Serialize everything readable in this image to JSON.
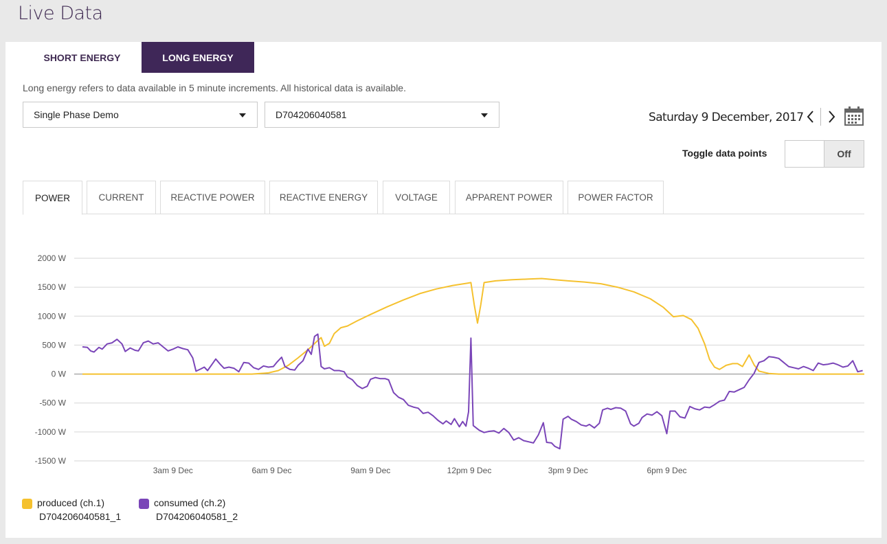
{
  "page": {
    "title": "Live Data"
  },
  "energy_tabs": [
    {
      "label": "SHORT ENERGY",
      "active": false
    },
    {
      "label": "LONG ENERGY",
      "active": true
    }
  ],
  "description": "Long energy refers to data available in 5 minute increments. All historical data is available.",
  "selects": {
    "site": {
      "value": "Single Phase Demo"
    },
    "device": {
      "value": "D704206040581"
    }
  },
  "date": {
    "label": "Saturday 9 December, 2017"
  },
  "toggle": {
    "label": "Toggle data points",
    "state": "Off"
  },
  "metric_tabs": [
    {
      "label": "POWER",
      "active": true
    },
    {
      "label": "CURRENT",
      "active": false
    },
    {
      "label": "REACTIVE POWER",
      "active": false
    },
    {
      "label": "REACTIVE ENERGY",
      "active": false
    },
    {
      "label": "VOLTAGE",
      "active": false
    },
    {
      "label": "APPARENT POWER",
      "active": false
    },
    {
      "label": "POWER FACTOR",
      "active": false
    }
  ],
  "icons": {
    "prev": "chevron-left-icon",
    "next": "chevron-right-icon",
    "calendar": "calendar-icon",
    "dropdown": "caret-down-icon"
  },
  "colors": {
    "accent": "#3f2758",
    "produced": "#f5c12e",
    "consumed": "#7a45b8"
  },
  "chart_data": {
    "type": "line",
    "title": "",
    "xlabel": "",
    "ylabel": "",
    "ylim": [
      -1500,
      2000
    ],
    "yticks": [
      2000,
      1500,
      1000,
      500,
      0,
      -500,
      -1000,
      -1500
    ],
    "ytick_labels": [
      "2000 W",
      "1500 W",
      "1000 W",
      "500 W",
      "0 W",
      "-500 W",
      "-1000 W",
      "-1500 W"
    ],
    "x_unit": "hours since 00:00 9 Dec",
    "xlim": [
      0,
      24
    ],
    "xticks": [
      3,
      6,
      9,
      12,
      15,
      18
    ],
    "xtick_labels": [
      "3am 9 Dec",
      "6am 9 Dec",
      "9am 9 Dec",
      "12pm 9 Dec",
      "3pm 9 Dec",
      "6pm 9 Dec"
    ],
    "grid": true,
    "legend_position": "bottom-left",
    "series": [
      {
        "name": "produced (ch.1)",
        "id": "D704206040581_1",
        "color": "#f5c12e",
        "points": [
          [
            0.25,
            0
          ],
          [
            5.4,
            0
          ],
          [
            5.9,
            20
          ],
          [
            6.2,
            60
          ],
          [
            6.5,
            150
          ],
          [
            6.8,
            280
          ],
          [
            7.1,
            420
          ],
          [
            7.4,
            580
          ],
          [
            7.5,
            630
          ],
          [
            7.6,
            480
          ],
          [
            7.75,
            530
          ],
          [
            7.9,
            700
          ],
          [
            8.1,
            800
          ],
          [
            8.3,
            830
          ],
          [
            8.6,
            920
          ],
          [
            9.0,
            1030
          ],
          [
            9.5,
            1160
          ],
          [
            10.0,
            1280
          ],
          [
            10.5,
            1390
          ],
          [
            11.0,
            1470
          ],
          [
            11.5,
            1530
          ],
          [
            11.95,
            1570
          ],
          [
            12.05,
            1580
          ],
          [
            12.15,
            1200
          ],
          [
            12.25,
            880
          ],
          [
            12.35,
            1200
          ],
          [
            12.45,
            1580
          ],
          [
            12.8,
            1610
          ],
          [
            13.3,
            1630
          ],
          [
            13.8,
            1640
          ],
          [
            14.2,
            1650
          ],
          [
            14.6,
            1630
          ],
          [
            15.0,
            1610
          ],
          [
            15.5,
            1590
          ],
          [
            16.0,
            1560
          ],
          [
            16.5,
            1500
          ],
          [
            17.0,
            1420
          ],
          [
            17.5,
            1300
          ],
          [
            17.9,
            1150
          ],
          [
            18.2,
            990
          ],
          [
            18.5,
            1010
          ],
          [
            18.75,
            940
          ],
          [
            18.95,
            790
          ],
          [
            19.15,
            520
          ],
          [
            19.3,
            250
          ],
          [
            19.45,
            120
          ],
          [
            19.6,
            80
          ],
          [
            19.8,
            150
          ],
          [
            20.0,
            180
          ],
          [
            20.15,
            180
          ],
          [
            20.3,
            130
          ],
          [
            20.5,
            330
          ],
          [
            20.65,
            160
          ],
          [
            20.8,
            50
          ],
          [
            21.1,
            10
          ],
          [
            21.4,
            0
          ],
          [
            24.0,
            0
          ]
        ]
      },
      {
        "name": "consumed (ch.2)",
        "id": "D704206040581_2",
        "color": "#7a45b8",
        "points": [
          [
            0.25,
            470
          ],
          [
            0.4,
            460
          ],
          [
            0.5,
            400
          ],
          [
            0.6,
            380
          ],
          [
            0.75,
            460
          ],
          [
            0.85,
            430
          ],
          [
            1.0,
            520
          ],
          [
            1.15,
            540
          ],
          [
            1.3,
            600
          ],
          [
            1.45,
            520
          ],
          [
            1.55,
            390
          ],
          [
            1.7,
            450
          ],
          [
            1.85,
            410
          ],
          [
            1.95,
            400
          ],
          [
            2.1,
            540
          ],
          [
            2.25,
            570
          ],
          [
            2.4,
            520
          ],
          [
            2.55,
            540
          ],
          [
            2.7,
            470
          ],
          [
            2.85,
            400
          ],
          [
            3.0,
            430
          ],
          [
            3.15,
            470
          ],
          [
            3.3,
            440
          ],
          [
            3.45,
            420
          ],
          [
            3.6,
            280
          ],
          [
            3.7,
            50
          ],
          [
            3.85,
            90
          ],
          [
            3.95,
            120
          ],
          [
            4.05,
            60
          ],
          [
            4.2,
            180
          ],
          [
            4.3,
            260
          ],
          [
            4.45,
            160
          ],
          [
            4.55,
            100
          ],
          [
            4.7,
            120
          ],
          [
            4.85,
            100
          ],
          [
            5.0,
            40
          ],
          [
            5.15,
            200
          ],
          [
            5.3,
            190
          ],
          [
            5.45,
            110
          ],
          [
            5.6,
            80
          ],
          [
            5.75,
            140
          ],
          [
            5.9,
            120
          ],
          [
            6.05,
            130
          ],
          [
            6.15,
            200
          ],
          [
            6.3,
            290
          ],
          [
            6.4,
            130
          ],
          [
            6.55,
            80
          ],
          [
            6.7,
            70
          ],
          [
            6.8,
            150
          ],
          [
            6.95,
            230
          ],
          [
            7.1,
            430
          ],
          [
            7.2,
            340
          ],
          [
            7.3,
            650
          ],
          [
            7.4,
            690
          ],
          [
            7.5,
            130
          ],
          [
            7.6,
            90
          ],
          [
            7.75,
            110
          ],
          [
            7.9,
            60
          ],
          [
            8.05,
            60
          ],
          [
            8.2,
            40
          ],
          [
            8.3,
            -50
          ],
          [
            8.45,
            -100
          ],
          [
            8.6,
            -200
          ],
          [
            8.75,
            -250
          ],
          [
            8.9,
            -210
          ],
          [
            9.0,
            -90
          ],
          [
            9.15,
            -60
          ],
          [
            9.3,
            -80
          ],
          [
            9.45,
            -80
          ],
          [
            9.55,
            -100
          ],
          [
            9.7,
            -320
          ],
          [
            9.85,
            -400
          ],
          [
            10.0,
            -440
          ],
          [
            10.15,
            -540
          ],
          [
            10.3,
            -570
          ],
          [
            10.45,
            -590
          ],
          [
            10.6,
            -680
          ],
          [
            10.75,
            -660
          ],
          [
            10.9,
            -720
          ],
          [
            11.05,
            -800
          ],
          [
            11.2,
            -860
          ],
          [
            11.3,
            -810
          ],
          [
            11.45,
            -870
          ],
          [
            11.55,
            -770
          ],
          [
            11.7,
            -910
          ],
          [
            11.8,
            -820
          ],
          [
            11.9,
            -900
          ],
          [
            11.98,
            -650
          ],
          [
            12.05,
            620
          ],
          [
            12.12,
            -890
          ],
          [
            12.3,
            -970
          ],
          [
            12.45,
            -1010
          ],
          [
            12.6,
            -990
          ],
          [
            12.75,
            -980
          ],
          [
            12.9,
            -1020
          ],
          [
            13.05,
            -940
          ],
          [
            13.2,
            -1010
          ],
          [
            13.35,
            -1140
          ],
          [
            13.5,
            -1100
          ],
          [
            13.65,
            -1150
          ],
          [
            13.8,
            -1170
          ],
          [
            13.95,
            -1190
          ],
          [
            14.1,
            -1050
          ],
          [
            14.25,
            -840
          ],
          [
            14.35,
            -1180
          ],
          [
            14.5,
            -1190
          ],
          [
            14.6,
            -1250
          ],
          [
            14.75,
            -1290
          ],
          [
            14.85,
            -780
          ],
          [
            15.0,
            -730
          ],
          [
            15.1,
            -780
          ],
          [
            15.25,
            -820
          ],
          [
            15.4,
            -880
          ],
          [
            15.55,
            -900
          ],
          [
            15.65,
            -870
          ],
          [
            15.8,
            -930
          ],
          [
            15.95,
            -850
          ],
          [
            16.05,
            -620
          ],
          [
            16.2,
            -590
          ],
          [
            16.3,
            -610
          ],
          [
            16.45,
            -580
          ],
          [
            16.6,
            -590
          ],
          [
            16.75,
            -640
          ],
          [
            16.9,
            -860
          ],
          [
            17.0,
            -900
          ],
          [
            17.15,
            -850
          ],
          [
            17.25,
            -750
          ],
          [
            17.4,
            -690
          ],
          [
            17.55,
            -710
          ],
          [
            17.7,
            -650
          ],
          [
            17.85,
            -720
          ],
          [
            18.0,
            -1030
          ],
          [
            18.1,
            -640
          ],
          [
            18.25,
            -640
          ],
          [
            18.4,
            -740
          ],
          [
            18.55,
            -760
          ],
          [
            18.7,
            -560
          ],
          [
            18.85,
            -600
          ],
          [
            19.0,
            -620
          ],
          [
            19.15,
            -570
          ],
          [
            19.3,
            -580
          ],
          [
            19.45,
            -530
          ],
          [
            19.6,
            -470
          ],
          [
            19.75,
            -450
          ],
          [
            19.9,
            -300
          ],
          [
            20.05,
            -310
          ],
          [
            20.2,
            -270
          ],
          [
            20.35,
            -230
          ],
          [
            20.5,
            -100
          ],
          [
            20.65,
            10
          ],
          [
            20.8,
            200
          ],
          [
            20.95,
            230
          ],
          [
            21.1,
            300
          ],
          [
            21.25,
            290
          ],
          [
            21.4,
            270
          ],
          [
            21.55,
            200
          ],
          [
            21.7,
            130
          ],
          [
            21.85,
            110
          ],
          [
            22.0,
            90
          ],
          [
            22.15,
            130
          ],
          [
            22.3,
            100
          ],
          [
            22.45,
            60
          ],
          [
            22.6,
            190
          ],
          [
            22.75,
            160
          ],
          [
            22.9,
            170
          ],
          [
            23.05,
            190
          ],
          [
            23.2,
            160
          ],
          [
            23.35,
            120
          ],
          [
            23.5,
            140
          ],
          [
            23.65,
            230
          ],
          [
            23.8,
            40
          ],
          [
            23.95,
            60
          ]
        ]
      }
    ]
  }
}
